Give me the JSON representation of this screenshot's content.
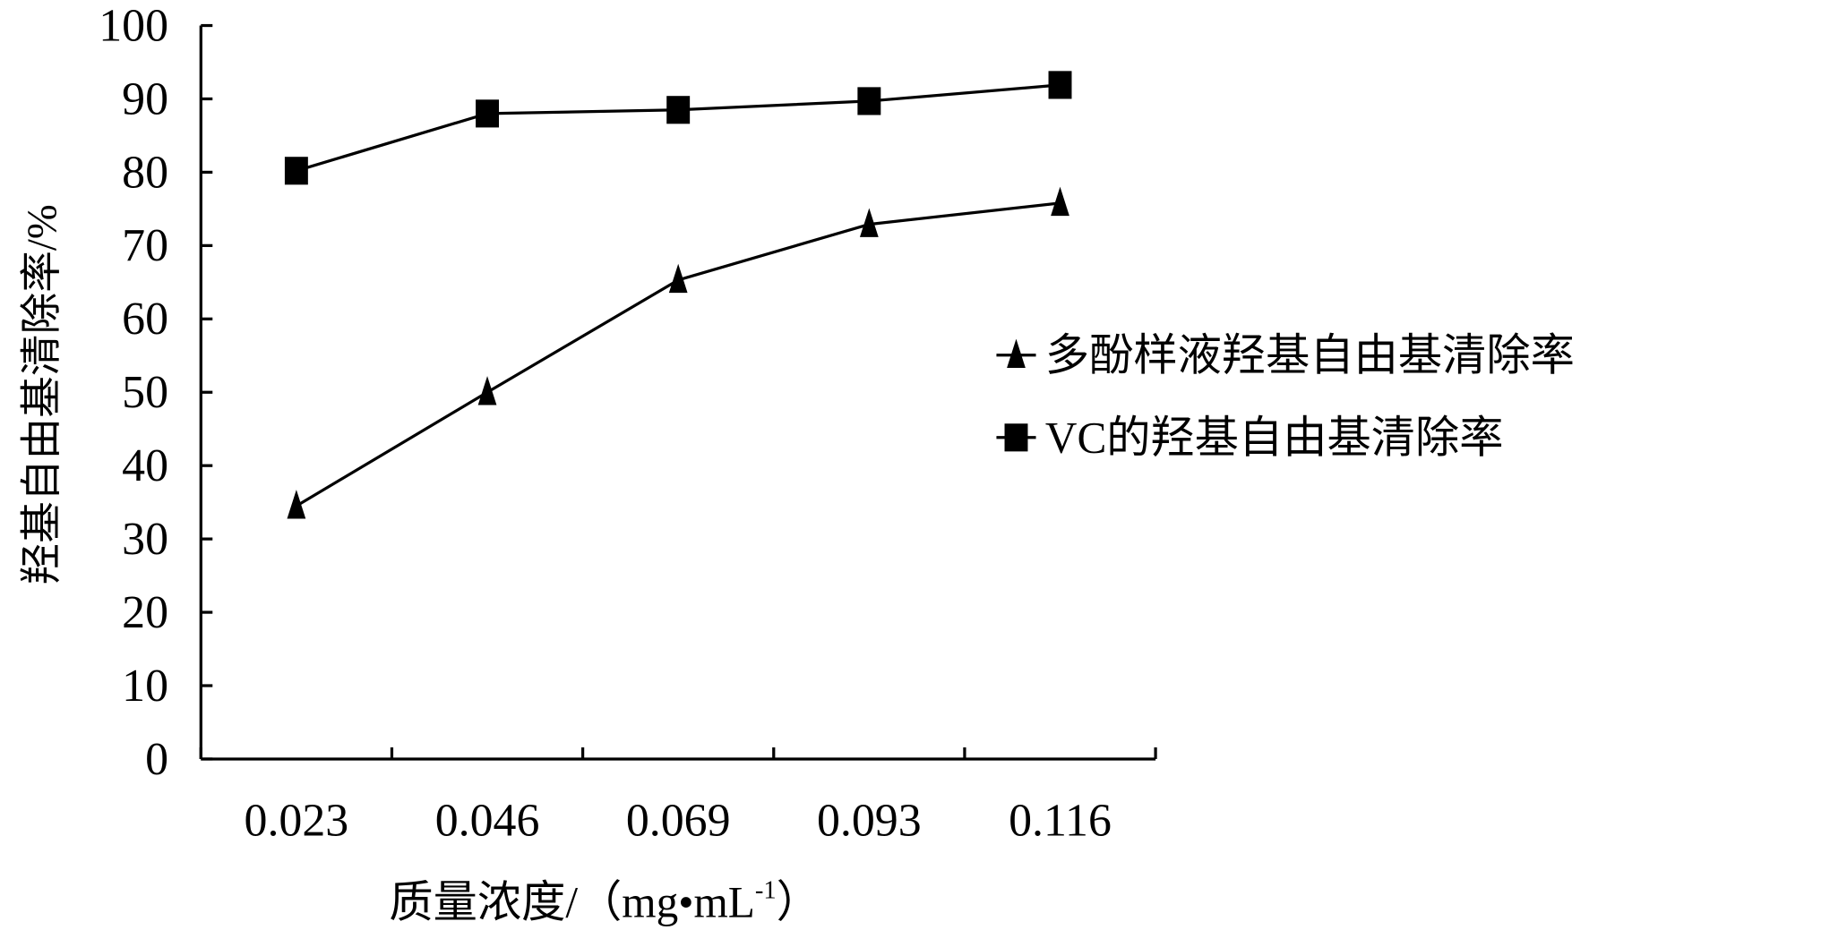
{
  "chart_data": {
    "type": "line",
    "title": "",
    "xlabel": "质量浓度/（mg•mL",
    "xlabel_sup": "-1",
    "xlabel_close": "）",
    "ylabel": "羟基自由基清除率/%",
    "categories": [
      "0.023",
      "0.046",
      "0.069",
      "0.093",
      "0.116"
    ],
    "ylim": [
      0,
      100
    ],
    "yticks": [
      "0",
      "10",
      "20",
      "30",
      "40",
      "50",
      "60",
      "70",
      "80",
      "90",
      "100"
    ],
    "grid": false,
    "legend_position": "right",
    "series": [
      {
        "name": "多酚样液羟基自由基清除率",
        "marker": "triangle",
        "values": [
          34.5,
          50.0,
          65.3,
          72.9,
          75.8
        ]
      },
      {
        "name": "VC的羟基自由基清除率",
        "marker": "square",
        "values": [
          80.2,
          88.0,
          88.5,
          89.7,
          91.9
        ]
      }
    ],
    "colors": {
      "line": "#000000",
      "background": "#ffffff"
    }
  }
}
